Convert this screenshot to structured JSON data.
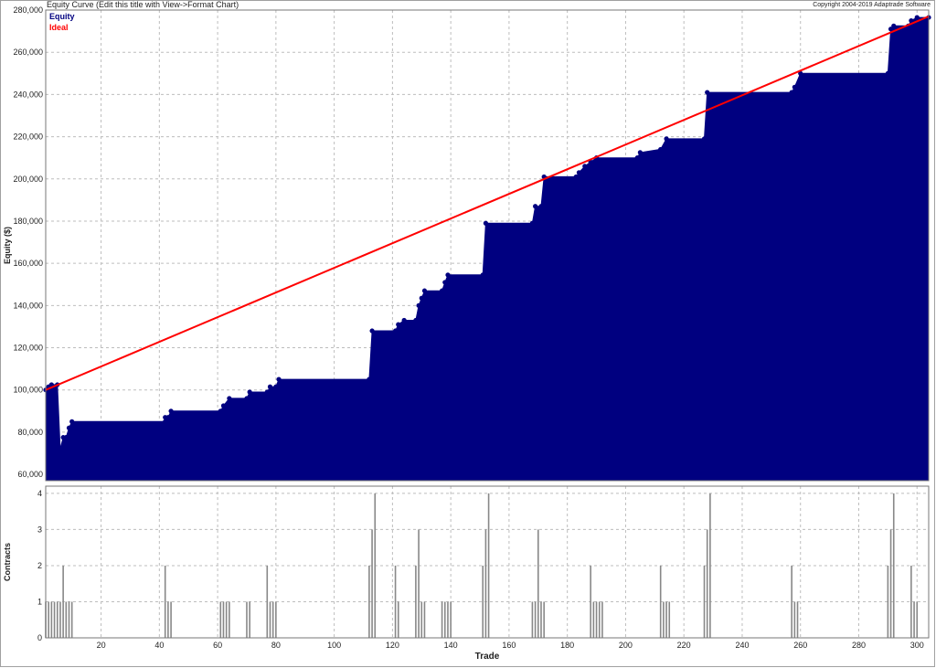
{
  "header": {
    "title": "Equity Curve (Edit this title with View->Format Chart)",
    "copyright": "Copyright 2004-2019 Adaptrade Software"
  },
  "legend": [
    {
      "label": "Equity",
      "color": "#000080"
    },
    {
      "label": "Ideal",
      "color": "#ff0000"
    }
  ],
  "colors": {
    "equity": "#000080",
    "ideal": "#ff0000",
    "contracts_bar": "#888888",
    "grid": "#bdbdbd"
  },
  "chart_data": [
    {
      "type": "area",
      "title": "Equity Curve (Edit this title with View->Format Chart)",
      "ylabel": "Equity ($)",
      "xlabel": "",
      "xlim": [
        1,
        304
      ],
      "ylim": [
        57000,
        280000
      ],
      "yticks": [
        60000,
        80000,
        100000,
        120000,
        140000,
        160000,
        180000,
        200000,
        220000,
        240000,
        260000,
        280000
      ],
      "ytick_labels": [
        "60,000",
        "80,000",
        "100,000",
        "120,000",
        "140,000",
        "160,000",
        "180,000",
        "200,000",
        "220,000",
        "240,000",
        "260,000",
        "280,000"
      ],
      "series": [
        {
          "name": "Equity",
          "points": [
            [
              1,
              100000
            ],
            [
              2,
              101500
            ],
            [
              3,
              102500
            ],
            [
              5,
              102500
            ],
            [
              6,
              72000
            ],
            [
              7,
              77500
            ],
            [
              8,
              77500
            ],
            [
              9,
              82000
            ],
            [
              10,
              85000
            ],
            [
              42,
              85000
            ],
            [
              42,
              87000
            ],
            [
              43,
              87000
            ],
            [
              44,
              90000
            ],
            [
              61,
              90000
            ],
            [
              62,
              92500
            ],
            [
              64,
              96000
            ],
            [
              70,
              96000
            ],
            [
              71,
              99000
            ],
            [
              77,
              99000
            ],
            [
              78,
              101500
            ],
            [
              80,
              101500
            ],
            [
              81,
              105000
            ],
            [
              112,
              105000
            ],
            [
              113,
              128000
            ],
            [
              121,
              128000
            ],
            [
              122,
              131000
            ],
            [
              124,
              133000
            ],
            [
              128,
              133000
            ],
            [
              129,
              140000
            ],
            [
              130,
              143500
            ],
            [
              131,
              147000
            ],
            [
              137,
              147000
            ],
            [
              138,
              151000
            ],
            [
              139,
              154500
            ],
            [
              151,
              154500
            ],
            [
              152,
              179000
            ],
            [
              168,
              179000
            ],
            [
              169,
              187000
            ],
            [
              171,
              187000
            ],
            [
              172,
              201000
            ],
            [
              183,
              201000
            ],
            [
              184,
              203000
            ],
            [
              186,
              206000
            ],
            [
              188,
              208000
            ],
            [
              190,
              210000
            ],
            [
              204,
              210000
            ],
            [
              205,
              212500
            ],
            [
              212,
              214000
            ],
            [
              214,
              219000
            ],
            [
              227,
              219000
            ],
            [
              228,
              241000
            ],
            [
              257,
              241000
            ],
            [
              258,
              243500
            ],
            [
              260,
              250000
            ],
            [
              290,
              250000
            ],
            [
              291,
              271000
            ],
            [
              292,
              272500
            ],
            [
              297,
              272500
            ],
            [
              298,
              275000
            ],
            [
              300,
              276500
            ],
            [
              304,
              276500
            ]
          ]
        },
        {
          "name": "Ideal",
          "points": [
            [
              1,
              100000
            ],
            [
              304,
              277000
            ]
          ]
        }
      ]
    },
    {
      "type": "bar",
      "xlabel": "Trade",
      "ylabel": "Contracts",
      "xlim": [
        1,
        304
      ],
      "ylim": [
        0,
        4.2
      ],
      "xticks": [
        20,
        40,
        60,
        80,
        100,
        120,
        140,
        160,
        180,
        200,
        220,
        240,
        260,
        280,
        300
      ],
      "yticks": [
        0,
        1,
        2,
        3,
        4
      ],
      "trades": [
        1,
        2,
        3,
        4,
        5,
        6,
        7,
        8,
        9,
        10,
        42,
        43,
        44,
        61,
        62,
        63,
        64,
        70,
        71,
        77,
        78,
        79,
        80,
        112,
        113,
        114,
        121,
        122,
        128,
        129,
        130,
        131,
        137,
        138,
        139,
        140,
        151,
        152,
        153,
        168,
        169,
        170,
        171,
        172,
        188,
        189,
        190,
        191,
        192,
        212,
        213,
        214,
        215,
        227,
        228,
        229,
        257,
        258,
        259,
        290,
        291,
        292,
        298,
        299,
        300
      ],
      "values": [
        1,
        1,
        1,
        1,
        1,
        1,
        2,
        1,
        1,
        1,
        2,
        1,
        1,
        1,
        1,
        1,
        1,
        1,
        1,
        2,
        1,
        1,
        1,
        2,
        3,
        4,
        2,
        1,
        2,
        3,
        1,
        1,
        1,
        1,
        1,
        1,
        2,
        3,
        4,
        1,
        1,
        3,
        1,
        1,
        2,
        1,
        1,
        1,
        1,
        2,
        1,
        1,
        1,
        2,
        3,
        4,
        2,
        1,
        1,
        2,
        3,
        4,
        2,
        1,
        1
      ]
    }
  ]
}
